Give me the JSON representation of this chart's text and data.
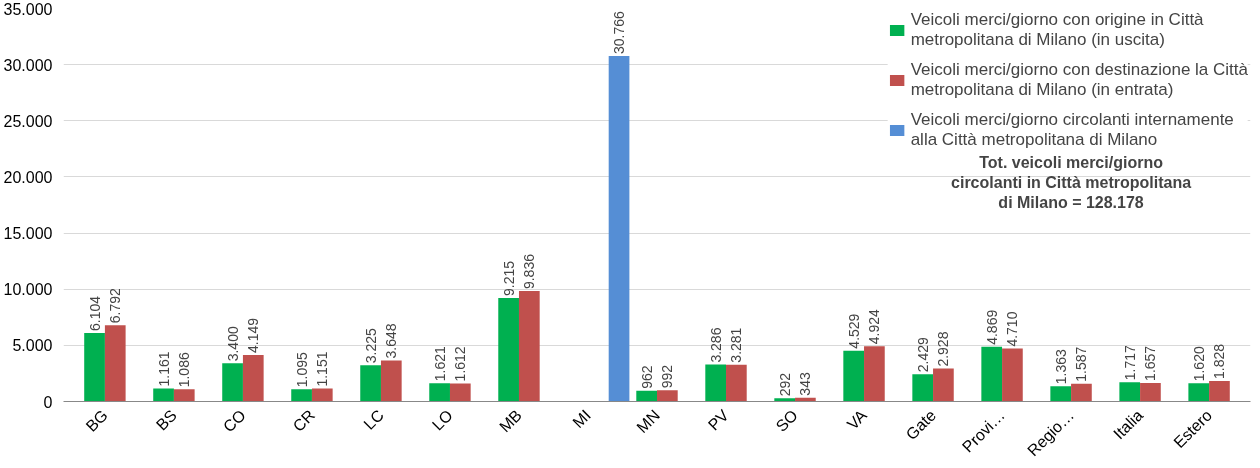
{
  "chart_data": {
    "type": "bar",
    "categories": [
      "BG",
      "BS",
      "CO",
      "CR",
      "LC",
      "LO",
      "MB",
      "MI",
      "MN",
      "PV",
      "SO",
      "VA",
      "Gate",
      "Provi…",
      "Regio…",
      "Italia",
      "Estero"
    ],
    "series": [
      {
        "name": "Veicoli merci/giorno con origine in Città\nmetropolitana di Milano (in uscita)",
        "color": "#00b050",
        "values": [
          6104,
          1161,
          3400,
          1095,
          3225,
          1621,
          9215,
          null,
          962,
          3286,
          292,
          4529,
          2429,
          4869,
          1363,
          1717,
          1620
        ],
        "value_labels": [
          "6.104",
          "1.161",
          "3.400",
          "1.095",
          "3.225",
          "1.621",
          "9.215",
          null,
          "962",
          "3.286",
          "292",
          "4.529",
          "2.429",
          "4.869",
          "1.363",
          "1.717",
          "1.620"
        ]
      },
      {
        "name": "Veicoli merci/giorno con destinazione la Città\nmetropolitana di Milano (in entrata)",
        "color": "#c0504d",
        "values": [
          6792,
          1086,
          4149,
          1151,
          3648,
          1612,
          9836,
          null,
          992,
          3281,
          343,
          4924,
          2928,
          4710,
          1587,
          1657,
          1828
        ],
        "value_labels": [
          "6.792",
          "1.086",
          "4.149",
          "1.151",
          "3.648",
          "1.612",
          "9.836",
          null,
          "992",
          "3.281",
          "343",
          "4.924",
          "2.928",
          "4.710",
          "1.587",
          "1.657",
          "1.828"
        ]
      },
      {
        "name": "Veicoli merci/giorno circolanti internamente\nalla Città metropolitana di Milano",
        "color": "#558ed5",
        "values": [
          null,
          null,
          null,
          null,
          null,
          null,
          null,
          30766,
          null,
          null,
          null,
          null,
          null,
          null,
          null,
          null,
          null
        ],
        "value_labels": [
          null,
          null,
          null,
          null,
          null,
          null,
          null,
          "30.766",
          null,
          null,
          null,
          null,
          null,
          null,
          null,
          null,
          null
        ]
      }
    ],
    "ylim": [
      0,
      35000
    ],
    "yticks": [
      0,
      {
        "value": 5000,
        "label": "5.000"
      },
      {
        "value": 10000,
        "label": "10.000"
      },
      {
        "value": 15000,
        "label": "15.000"
      },
      {
        "value": 20000,
        "label": "20.000"
      },
      {
        "value": 25000,
        "label": "25.000"
      },
      {
        "value": 30000,
        "label": "30.000"
      },
      {
        "value": 35000,
        "label": "35.000"
      }
    ],
    "grid": "y",
    "legend": "top right",
    "annotations": [
      "Tot. veicoli merci/giorno\ncircolanti in Città metropolitana\ndi Milano = 128.178"
    ]
  }
}
